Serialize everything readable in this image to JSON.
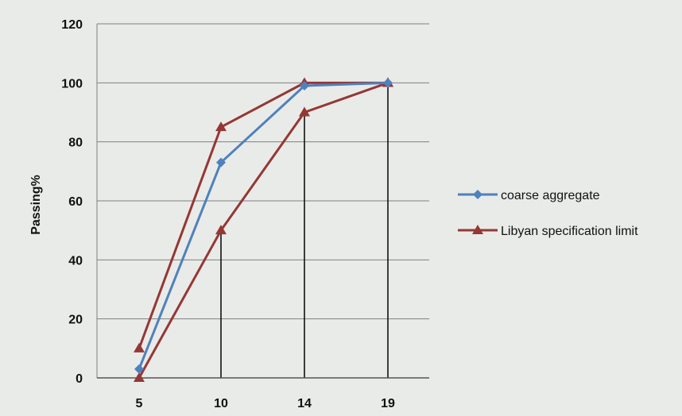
{
  "chart_data": {
    "type": "line",
    "title": "",
    "xlabel": "",
    "ylabel": "Passing%",
    "categories": [
      "5",
      "10",
      "14",
      "19"
    ],
    "ylim": [
      0,
      120
    ],
    "yticks": [
      0,
      20,
      40,
      60,
      80,
      100,
      120
    ],
    "grid": "horizontal",
    "legend_position": "right",
    "series": [
      {
        "name": "coarse aggregate",
        "values": [
          3,
          73,
          99,
          100
        ],
        "color": "#4f81bd",
        "marker": "diamond"
      },
      {
        "name": "Libyan specification limit",
        "values": [
          10,
          85,
          100,
          100
        ],
        "color": "#953735",
        "marker": "triangle"
      },
      {
        "name": "",
        "values": [
          0,
          50,
          90,
          100
        ],
        "color": "#953735",
        "marker": "triangle"
      }
    ]
  }
}
